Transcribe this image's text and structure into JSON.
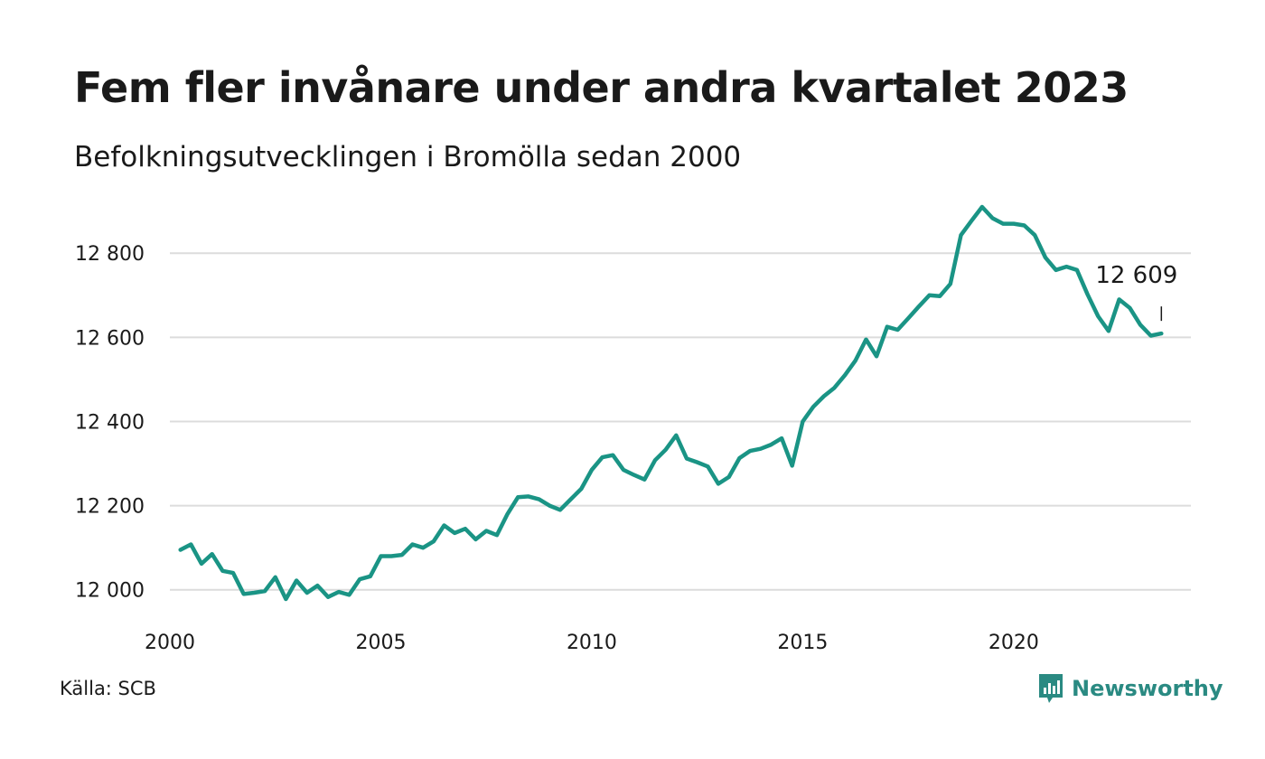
{
  "header": {
    "title": "Fem fler invånare under andra kvartalet 2023",
    "subtitle": "Befolkningsutvecklingen i Bromölla sedan 2000"
  },
  "footer": {
    "source": "Källa: SCB",
    "brand": "Newsworthy"
  },
  "colors": {
    "line": "#1a9485",
    "grid": "#dcdcdc",
    "brand": "#2a8a82"
  },
  "chart_data": {
    "type": "line",
    "title": "Fem fler invånare under andra kvartalet 2023",
    "subtitle": "Befolkningsutvecklingen i Bromölla sedan 2000",
    "xlim": [
      2000,
      2024.2
    ],
    "ylim": [
      11920,
      12940
    ],
    "x_ticks": [
      2000,
      2005,
      2010,
      2015,
      2020
    ],
    "x_tick_labels": [
      "2000",
      "2005",
      "2010",
      "2015",
      "2020"
    ],
    "y_ticks": [
      12000,
      12200,
      12400,
      12600,
      12800
    ],
    "y_tick_labels": [
      "12 000",
      "12 200",
      "12 400",
      "12 600",
      "12 800"
    ],
    "grid": "horizontal",
    "end_label": "12 609",
    "series": [
      {
        "values": [
          12095,
          12108,
          12062,
          12085,
          12045,
          12040,
          11990,
          11993,
          11997,
          12030,
          11978,
          12022,
          11993,
          12010,
          11983,
          11995,
          11988,
          12025,
          12032,
          12080,
          12080,
          12083,
          12108,
          12100,
          12115,
          12153,
          12135,
          12145,
          12120,
          12140,
          12130,
          12180,
          12220,
          12222,
          12215,
          12200,
          12190,
          12215,
          12240,
          12285,
          12315,
          12320,
          12285,
          12273,
          12262,
          12308,
          12333,
          12367,
          12312,
          12303,
          12293,
          12252,
          12268,
          12313,
          12330,
          12335,
          12345,
          12360,
          12295,
          12400,
          12435,
          12460,
          12480,
          12510,
          12545,
          12595,
          12555,
          12625,
          12618,
          12645,
          12673,
          12700,
          12698,
          12727,
          12843,
          12877,
          12910,
          12883,
          12870,
          12870,
          12866,
          12843,
          12790,
          12760,
          12768,
          12760,
          12702,
          12650,
          12615,
          12690,
          12670,
          12630,
          12604,
          12609
        ]
      }
    ]
  }
}
